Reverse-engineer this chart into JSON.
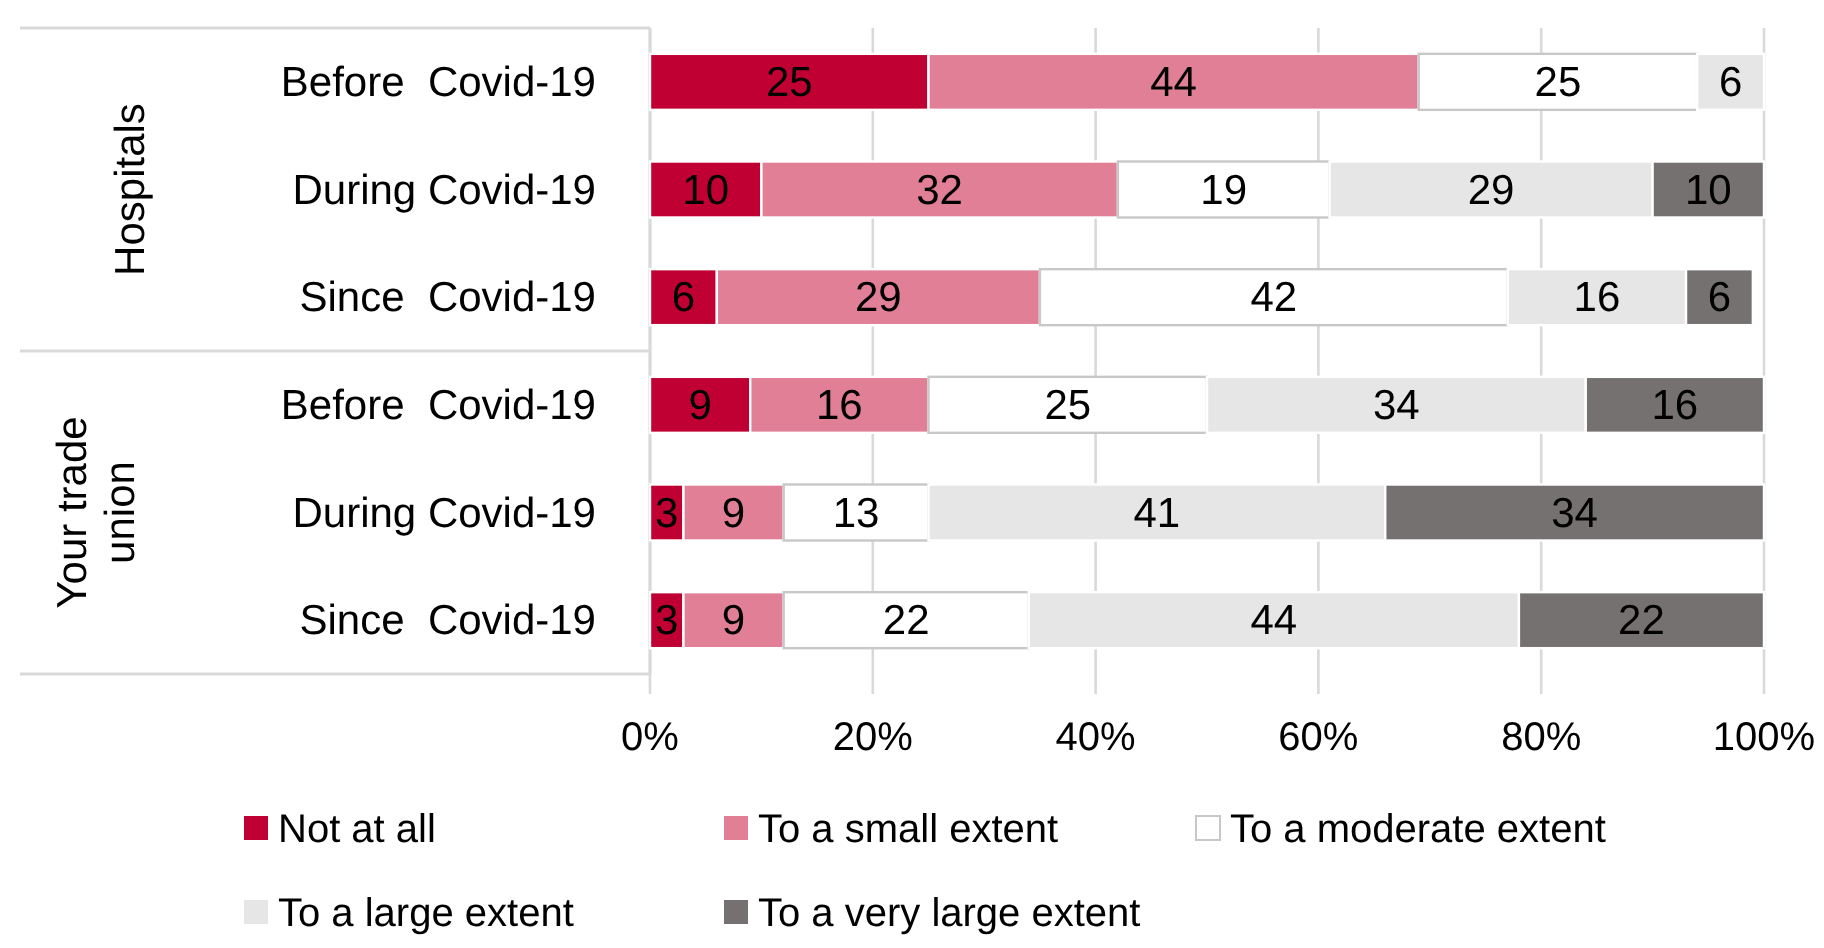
{
  "chart_data": {
    "type": "bar",
    "orientation": "horizontal",
    "stacked": true,
    "data_labels": true,
    "grid": "x",
    "legend": "bottom",
    "categories": [
      "Before  Covid-19",
      "During Covid-19",
      "Since  Covid-19",
      "Before  Covid-19",
      "During Covid-19",
      "Since  Covid-19"
    ],
    "annotations": [
      "Hospitals",
      "Your trade union"
    ],
    "xlim": [
      0,
      100
    ],
    "xticks": [
      {
        "value": 0,
        "label": "0%"
      },
      {
        "value": 20,
        "label": "20%"
      },
      {
        "value": 40,
        "label": "40%"
      },
      {
        "value": 60,
        "label": "60%"
      },
      {
        "value": 80,
        "label": "80%"
      },
      {
        "value": 100,
        "label": "100%"
      }
    ],
    "series": [
      {
        "name": "Not at all",
        "color": "#c00032",
        "values": [
          25,
          10,
          6,
          9,
          3,
          3
        ]
      },
      {
        "name": "To a small extent",
        "color": "#e07f96",
        "values": [
          44,
          32,
          29,
          16,
          9,
          9
        ]
      },
      {
        "name": "To a moderate extent",
        "color": "#ffffff",
        "values": [
          25,
          19,
          42,
          25,
          13,
          22
        ]
      },
      {
        "name": "To a large extent",
        "color": "#e6e6e6",
        "values": [
          6,
          29,
          16,
          34,
          41,
          44
        ]
      },
      {
        "name": "To a very large extent",
        "color": "#767171",
        "values": [
          null,
          10,
          6,
          16,
          34,
          22
        ]
      }
    ]
  }
}
